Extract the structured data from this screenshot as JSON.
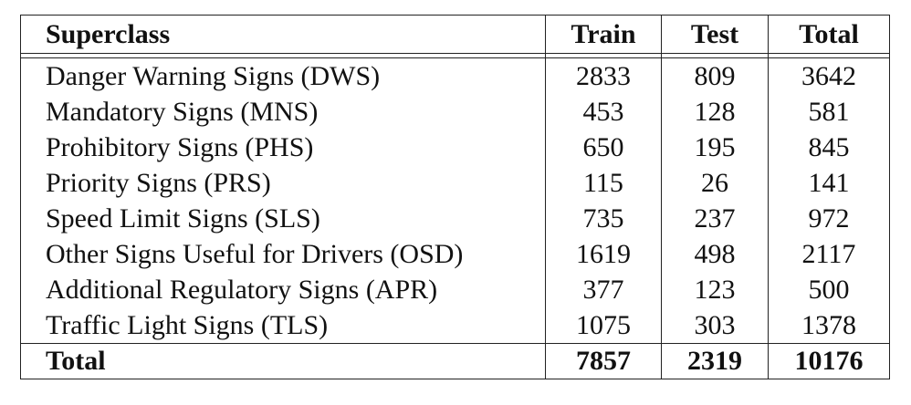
{
  "table": {
    "headers": [
      "Superclass",
      "Train",
      "Test",
      "Total"
    ],
    "rows": [
      {
        "name": "Danger Warning Signs (DWS)",
        "train": "2833",
        "test": "809",
        "total": "3642"
      },
      {
        "name": "Mandatory Signs (MNS)",
        "train": "453",
        "test": "128",
        "total": "581"
      },
      {
        "name": "Prohibitory Signs (PHS)",
        "train": "650",
        "test": "195",
        "total": "845"
      },
      {
        "name": "Priority Signs (PRS)",
        "train": "115",
        "test": "26",
        "total": "141"
      },
      {
        "name": "Speed Limit Signs (SLS)",
        "train": "735",
        "test": "237",
        "total": "972"
      },
      {
        "name": "Other Signs Useful for Drivers (OSD)",
        "train": "1619",
        "test": "498",
        "total": "2117"
      },
      {
        "name": "Additional Regulatory Signs (APR)",
        "train": "377",
        "test": "123",
        "total": "500"
      },
      {
        "name": "Traffic Light Signs (TLS)",
        "train": "1075",
        "test": "303",
        "total": "1378"
      }
    ],
    "total_row": {
      "name": "Total",
      "train": "7857",
      "test": "2319",
      "total": "10176"
    }
  }
}
